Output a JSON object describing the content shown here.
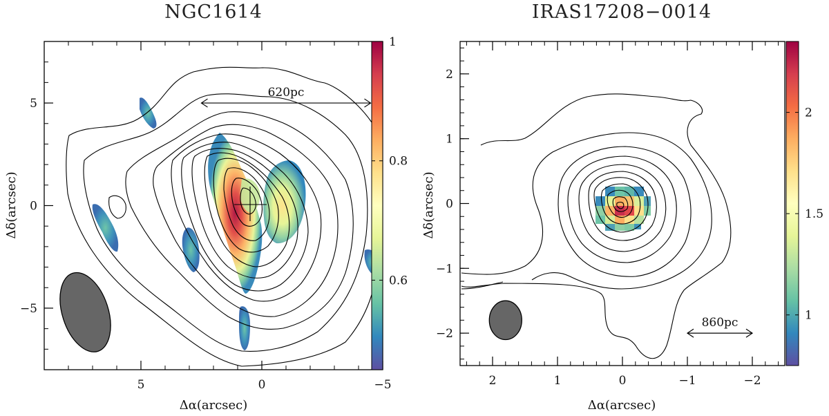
{
  "chart_data": [
    {
      "type": "heatmap",
      "title": "NGC1614",
      "xlabel": "Δα(arcsec)",
      "ylabel": "Δδ(arcsec)",
      "xlim": [
        9,
        -5
      ],
      "ylim": [
        -8,
        8
      ],
      "x_ticks": [
        5,
        0,
        -5
      ],
      "y_ticks": [
        5,
        0,
        -5
      ],
      "colorbar": {
        "min": 0.45,
        "max": 1.0,
        "ticks": [
          0.6,
          0.8,
          1
        ],
        "tick_labels": [
          "0.6",
          "0.8",
          "1"
        ]
      },
      "scale_bar": {
        "label": "620pc",
        "x_from": 2.5,
        "x_to": -4.5,
        "y": 5
      },
      "beam": {
        "x": 7.3,
        "y": -5.2,
        "major": 4.0,
        "minor": 1.9
      }
    },
    {
      "type": "heatmap",
      "title": "IRAS17208−0014",
      "xlabel": "Δα(arcsec)",
      "ylabel": "Δδ(arcsec)",
      "xlim": [
        2.5,
        -2.5
      ],
      "ylim": [
        -2.5,
        2.5
      ],
      "x_ticks": [
        2,
        1,
        0,
        -1,
        -2
      ],
      "y_ticks": [
        2,
        1,
        0,
        -1,
        -2
      ],
      "colorbar": {
        "min": 0.75,
        "max": 2.35,
        "ticks": [
          1,
          1.5,
          2
        ],
        "tick_labels": [
          "1",
          "1.5",
          "2"
        ]
      },
      "scale_bar": {
        "label": "860pc",
        "x_from": -1.0,
        "x_to": -2.0,
        "y": -2.0
      },
      "beam": {
        "x": 1.8,
        "y": -1.8,
        "major": 0.6,
        "minor": 0.5
      }
    }
  ]
}
